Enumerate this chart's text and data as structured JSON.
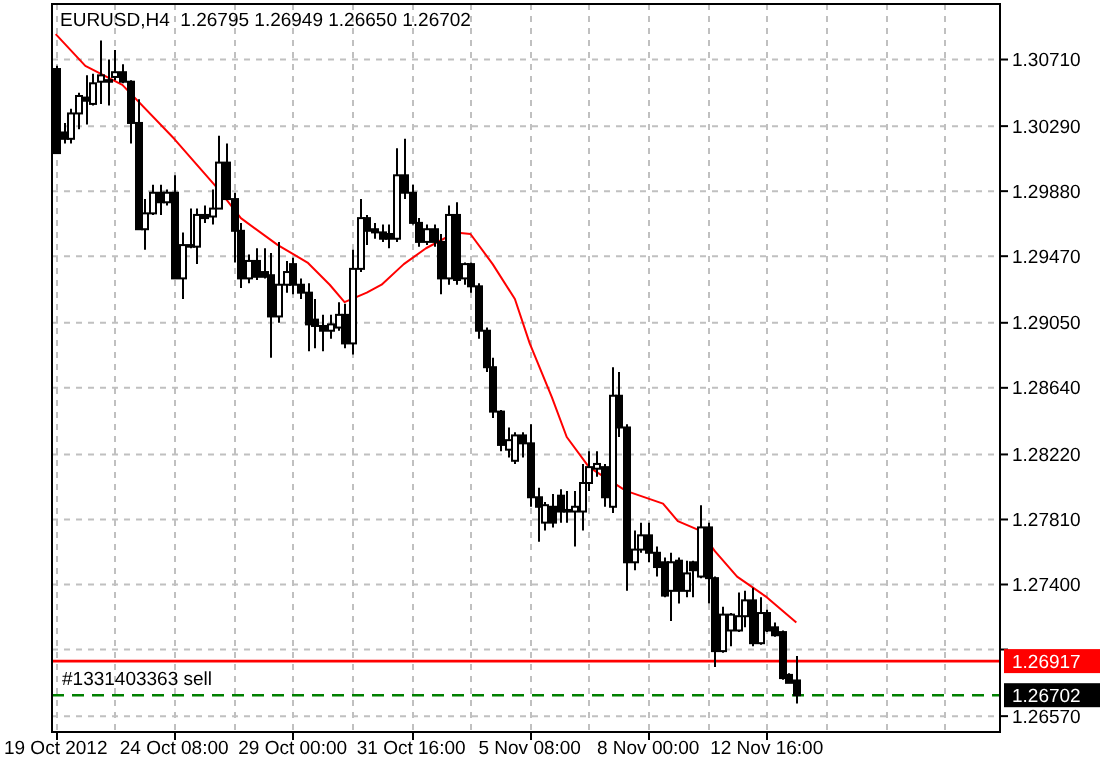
{
  "chart_data": {
    "type": "candlestick",
    "title": "EURUSD,H4  1.26795 1.26949 1.26650 1.26702",
    "categories": [
      "19 Oct 2012",
      null,
      null,
      null,
      null,
      null,
      null,
      null,
      null,
      null,
      null,
      null,
      null,
      null,
      null,
      null,
      "24 Oct 08:00",
      null,
      null,
      null,
      null,
      null,
      null,
      null,
      null,
      null,
      null,
      null,
      null,
      null,
      null,
      null,
      "29 Oct 00:00",
      null,
      null,
      null,
      null,
      null,
      null,
      null,
      null,
      null,
      null,
      null,
      null,
      null,
      null,
      null,
      "31 Oct 16:00",
      null,
      null,
      null,
      null,
      null,
      null,
      null,
      null,
      null,
      null,
      null,
      null,
      null,
      null,
      null,
      "5 Nov 08:00",
      null,
      null,
      null,
      null,
      null,
      null,
      null,
      null,
      null,
      null,
      null,
      null,
      null,
      null,
      null,
      "8 Nov 00:00",
      null,
      null,
      null,
      null,
      null,
      null,
      null,
      null,
      null,
      null,
      null,
      null,
      null,
      null,
      null,
      "12 Nov 16:00",
      null,
      null,
      null,
      null,
      null,
      null,
      null,
      null,
      null,
      null,
      null,
      null,
      null,
      null,
      null,
      null,
      null,
      null,
      null,
      null,
      null,
      null,
      null,
      null,
      null,
      null,
      null,
      null,
      null,
      null,
      null
    ],
    "ohlc": [
      [
        1.3065,
        1.3067,
        1.3012,
        1.3012
      ],
      [
        1.3025,
        1.3031,
        1.3018,
        1.3021
      ],
      [
        1.3021,
        1.304,
        1.3018,
        1.3037
      ],
      [
        1.3037,
        1.305,
        1.3027,
        1.3048
      ],
      [
        1.3047,
        1.3061,
        1.303,
        1.3045
      ],
      [
        1.3043,
        1.3062,
        1.3042,
        1.3056
      ],
      [
        1.3057,
        1.3083,
        1.3043,
        1.3061
      ],
      [
        1.3058,
        1.3071,
        1.3042,
        1.3057
      ],
      [
        1.306,
        1.3077,
        1.3058,
        1.3063
      ],
      [
        1.3063,
        1.3068,
        1.3056,
        1.3057
      ],
      [
        1.3057,
        1.3058,
        1.3018,
        1.3031
      ],
      [
        1.3031,
        1.3046,
        1.2964,
        1.2964
      ],
      [
        1.2964,
        1.2983,
        1.2951,
        1.2974
      ],
      [
        1.2974,
        1.2992,
        1.2973,
        1.2987
      ],
      [
        1.2987,
        1.2992,
        1.2973,
        1.2981
      ],
      [
        1.2981,
        1.2989,
        1.2979,
        1.2987
      ],
      [
        1.2987,
        1.2998,
        1.2933,
        1.2933
      ],
      [
        1.2933,
        1.2962,
        1.292,
        1.2954
      ],
      [
        1.2954,
        1.2977,
        1.2952,
        1.2953
      ],
      [
        1.2953,
        1.2977,
        1.2942,
        1.2973
      ],
      [
        1.2973,
        1.2979,
        1.2968,
        1.2971
      ],
      [
        1.2972,
        1.2989,
        1.2967,
        1.2977
      ],
      [
        1.2977,
        1.3023,
        1.2977,
        1.3006
      ],
      [
        1.3006,
        1.3018,
        1.2983,
        1.2983
      ],
      [
        1.2983,
        1.2987,
        1.2943,
        1.2963
      ],
      [
        1.2963,
        1.2968,
        1.2927,
        1.2933
      ],
      [
        1.2933,
        1.2948,
        1.293,
        1.2944
      ],
      [
        1.2944,
        1.2952,
        1.2932,
        1.2934
      ],
      [
        1.2937,
        1.2952,
        1.2933,
        1.2934
      ],
      [
        1.2935,
        1.2949,
        1.2883,
        1.2909
      ],
      [
        1.2909,
        1.2956,
        1.2905,
        1.2929
      ],
      [
        1.2929,
        1.2944,
        1.2924,
        1.2937
      ],
      [
        1.2942,
        1.2946,
        1.2923,
        1.2929
      ],
      [
        1.2929,
        1.2933,
        1.292,
        1.2924
      ],
      [
        1.2924,
        1.293,
        1.2887,
        1.2904
      ],
      [
        1.2907,
        1.292,
        1.2889,
        1.2903
      ],
      [
        1.2903,
        1.291,
        1.2887,
        1.29
      ],
      [
        1.29,
        1.291,
        1.2895,
        1.2904
      ],
      [
        1.2902,
        1.2918,
        1.29,
        1.291
      ],
      [
        1.291,
        1.2917,
        1.2889,
        1.2892
      ],
      [
        1.2892,
        1.2951,
        1.2885,
        1.2939
      ],
      [
        1.2939,
        1.2983,
        1.2937,
        1.2971
      ],
      [
        1.2971,
        1.2973,
        1.2954,
        1.2963
      ],
      [
        1.2964,
        1.2968,
        1.2958,
        1.2962
      ],
      [
        1.2962,
        1.2967,
        1.2956,
        1.2958
      ],
      [
        1.2961,
        1.2967,
        1.2952,
        1.2958
      ],
      [
        1.2958,
        1.3015,
        1.2956,
        1.2998
      ],
      [
        1.2998,
        1.3021,
        1.2983,
        1.2987
      ],
      [
        1.2987,
        1.2992,
        1.2967,
        1.2968
      ],
      [
        1.2968,
        1.2971,
        1.2953,
        1.2956
      ],
      [
        1.2956,
        1.2967,
        1.2954,
        1.2964
      ],
      [
        1.2964,
        1.2967,
        1.2953,
        1.2956
      ],
      [
        1.2956,
        1.2961,
        1.2923,
        1.2933
      ],
      [
        1.2933,
        1.2979,
        1.2929,
        1.2973
      ],
      [
        1.2973,
        1.2981,
        1.2929,
        1.2932
      ],
      [
        1.2933,
        1.2943,
        1.2929,
        1.2942
      ],
      [
        1.2942,
        1.2943,
        1.2924,
        1.2928
      ],
      [
        1.2928,
        1.293,
        1.2895,
        1.29
      ],
      [
        1.29,
        1.2902,
        1.2874,
        1.2877
      ],
      [
        1.2877,
        1.2883,
        1.2845,
        1.2849
      ],
      [
        1.2849,
        1.285,
        1.2824,
        1.2828
      ],
      [
        1.2825,
        1.2839,
        1.282,
        1.2831
      ],
      [
        1.2818,
        1.2836,
        1.2816,
        1.2834
      ],
      [
        1.2834,
        1.2836,
        1.282,
        1.2829
      ],
      [
        1.2829,
        1.2841,
        1.2789,
        1.2795
      ],
      [
        1.2795,
        1.2801,
        1.2767,
        1.2789
      ],
      [
        1.2779,
        1.2792,
        1.2774,
        1.279
      ],
      [
        1.2789,
        1.2797,
        1.2776,
        1.2779
      ],
      [
        1.2796,
        1.28,
        1.2779,
        1.2786
      ],
      [
        1.2787,
        1.2799,
        1.2779,
        1.2786
      ],
      [
        1.2786,
        1.2799,
        1.2764,
        1.2789
      ],
      [
        1.2786,
        1.2816,
        1.2774,
        1.2804
      ],
      [
        1.2804,
        1.2824,
        1.2799,
        1.2814
      ],
      [
        1.2813,
        1.2824,
        1.2808,
        1.2816
      ],
      [
        1.2814,
        1.2816,
        1.2789,
        1.2795
      ],
      [
        1.2789,
        1.2877,
        1.2785,
        1.2859
      ],
      [
        1.2859,
        1.2874,
        1.2833,
        1.2839
      ],
      [
        1.2839,
        1.2841,
        1.2736,
        1.2754
      ],
      [
        1.2754,
        1.2774,
        1.2749,
        1.2762
      ],
      [
        1.2762,
        1.2779,
        1.276,
        1.2771
      ],
      [
        1.2771,
        1.2779,
        1.2754,
        1.276
      ],
      [
        1.276,
        1.2764,
        1.2745,
        1.2751
      ],
      [
        1.2754,
        1.2757,
        1.2732,
        1.2733
      ],
      [
        1.2736,
        1.276,
        1.2717,
        1.2754
      ],
      [
        1.2755,
        1.2757,
        1.2728,
        1.2736
      ],
      [
        1.2736,
        1.2755,
        1.2732,
        1.2747
      ],
      [
        1.2754,
        1.2755,
        1.2732,
        1.2749
      ],
      [
        1.2745,
        1.279,
        1.2744,
        1.2776
      ],
      [
        1.2776,
        1.2779,
        1.2728,
        1.2744
      ],
      [
        1.2744,
        1.2745,
        1.2688,
        1.2698
      ],
      [
        1.2698,
        1.2726,
        1.2697,
        1.2721
      ],
      [
        1.2711,
        1.2722,
        1.2701,
        1.2721
      ],
      [
        1.2711,
        1.2735,
        1.271,
        1.272
      ],
      [
        1.272,
        1.2736,
        1.2713,
        1.273
      ],
      [
        1.273,
        1.2738,
        1.2701,
        1.2703
      ],
      [
        1.2703,
        1.2732,
        1.2702,
        1.2722
      ],
      [
        1.2722,
        1.2724,
        1.271,
        1.2711
      ],
      [
        1.2713,
        1.2716,
        1.2707,
        1.2708
      ],
      [
        1.271,
        1.2711,
        1.268,
        1.2681
      ],
      [
        1.2683,
        1.2684,
        1.2678,
        1.2678
      ],
      [
        1.26795,
        1.26949,
        1.2665,
        1.26702
      ],
      null,
      null,
      null,
      null,
      null,
      null,
      null,
      null,
      null,
      null,
      null,
      null,
      null,
      null,
      null,
      null,
      null,
      null,
      null,
      null,
      null,
      null,
      null,
      null,
      null,
      null,
      null
    ],
    "series": [
      {
        "type": "line",
        "color": "#ff0000",
        "values": [
          1.3087,
          null,
          null,
          null,
          1.3067,
          null,
          null,
          null,
          null,
          1.3055,
          null,
          null,
          null,
          null,
          null,
          null,
          1.3021,
          null,
          null,
          null,
          null,
          null,
          1.2989,
          null,
          null,
          1.2971,
          null,
          null,
          null,
          null,
          1.2954,
          null,
          null,
          null,
          1.2943,
          null,
          null,
          1.2929,
          null,
          1.2918,
          null,
          null,
          1.2924,
          null,
          1.2929,
          null,
          null,
          1.2942,
          null,
          null,
          1.2952,
          null,
          null,
          null,
          1.2962,
          null,
          1.2961,
          null,
          null,
          1.2942,
          null,
          null,
          1.292,
          null,
          1.2892,
          null,
          null,
          1.2858,
          null,
          1.2833,
          null,
          null,
          1.2814,
          null,
          null,
          1.2805,
          null,
          1.2799,
          null,
          null,
          null,
          null,
          1.2791,
          null,
          1.278,
          null,
          null,
          1.2774,
          null,
          1.2761,
          null,
          null,
          1.2745,
          null,
          null,
          null,
          1.2732,
          null,
          null,
          null,
          1.2716,
          null,
          null,
          null,
          null,
          null,
          null,
          null,
          null,
          null,
          null,
          null,
          null,
          null,
          null,
          null,
          null,
          null,
          null,
          null,
          null,
          null,
          null,
          null,
          null,
          null,
          null,
          null
        ]
      }
    ],
    "ylim": [
      1.2647,
      1.3106
    ],
    "yticks": [
      {
        "value": 1.2657,
        "label": "1.26570"
      },
      {
        "value": 1.2699,
        "label": null
      },
      {
        "value": 1.274,
        "label": "1.27400"
      },
      {
        "value": 1.2781,
        "label": "1.27810"
      },
      {
        "value": 1.2822,
        "label": "1.28220"
      },
      {
        "value": 1.2864,
        "label": "1.28640"
      },
      {
        "value": 1.2905,
        "label": "1.29050"
      },
      {
        "value": 1.2947,
        "label": "1.29470"
      },
      {
        "value": 1.2988,
        "label": "1.29880"
      },
      {
        "value": 1.3029,
        "label": "1.30290"
      },
      {
        "value": 1.3071,
        "label": "1.30710"
      }
    ],
    "ref_lines": [
      {
        "axis": "y",
        "value": 1.26917,
        "label": "#1331403363 sell",
        "color": "#ff0000",
        "line_style": "solid"
      },
      {
        "axis": "y",
        "value": 1.26702,
        "color": "#008000",
        "line_style": "dashed"
      }
    ],
    "annotations": [
      "1.26917",
      "1.26702"
    ],
    "grid": true
  }
}
